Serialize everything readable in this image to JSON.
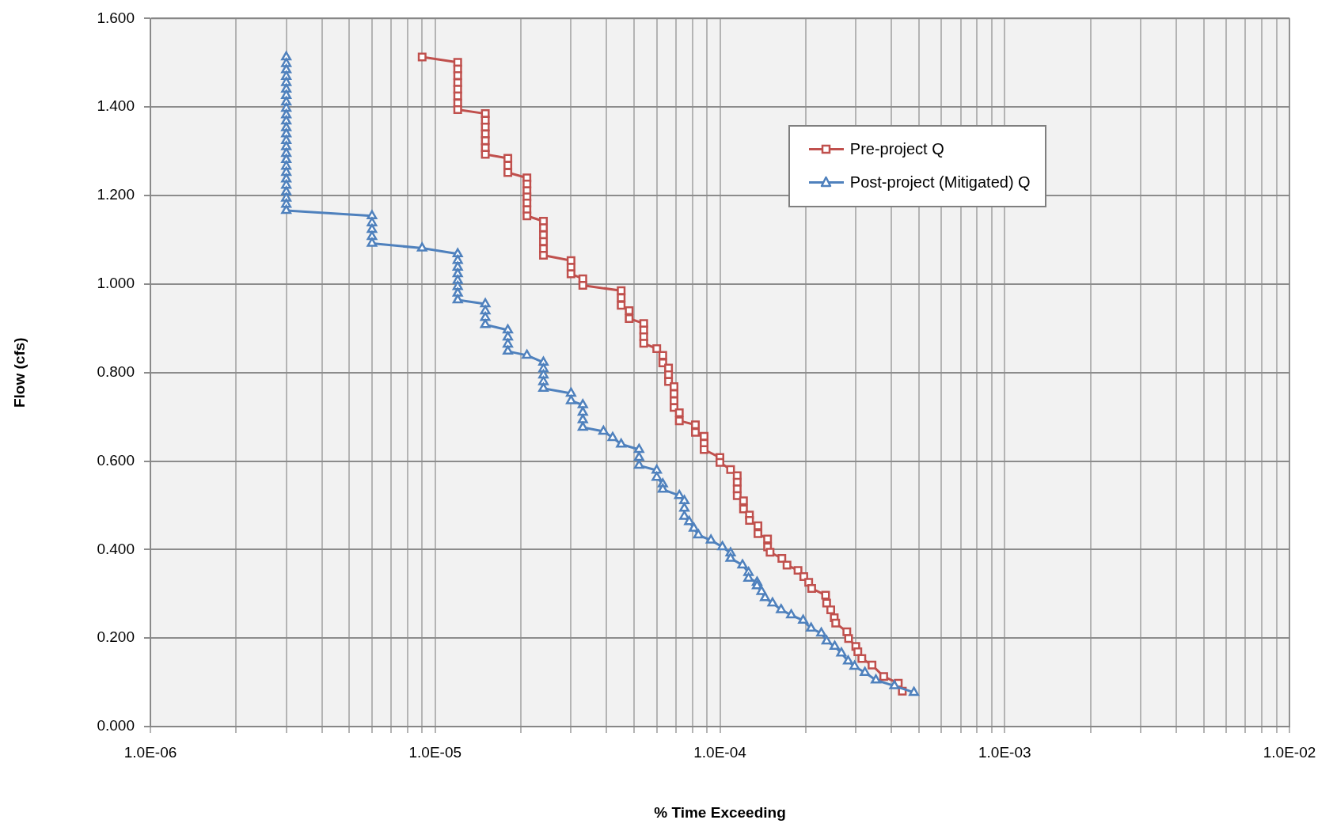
{
  "chart_data": {
    "type": "line",
    "xlabel": "% Time Exceeding",
    "ylabel": "Flow (cfs)",
    "log": "x",
    "grid": true,
    "legend": "top right",
    "xlim": [
      1e-06,
      0.01
    ],
    "xticks": [
      {
        "value": 1e-06,
        "label": "1.0E-06"
      },
      {
        "value": 2e-06,
        "label": null
      },
      {
        "value": 3e-06,
        "label": null
      },
      {
        "value": 4e-06,
        "label": null
      },
      {
        "value": 5e-06,
        "label": null
      },
      {
        "value": 6e-06,
        "label": null
      },
      {
        "value": 7e-06,
        "label": null
      },
      {
        "value": 8e-06,
        "label": null
      },
      {
        "value": 9e-06,
        "label": null
      },
      {
        "value": 1e-05,
        "label": "1.0E-05"
      },
      {
        "value": 2e-05,
        "label": null
      },
      {
        "value": 3e-05,
        "label": null
      },
      {
        "value": 4e-05,
        "label": null
      },
      {
        "value": 5e-05,
        "label": null
      },
      {
        "value": 6e-05,
        "label": null
      },
      {
        "value": 7e-05,
        "label": null
      },
      {
        "value": 8e-05,
        "label": null
      },
      {
        "value": 9e-05,
        "label": null
      },
      {
        "value": 0.0001,
        "label": "1.0E-04"
      },
      {
        "value": 0.0002,
        "label": null
      },
      {
        "value": 0.0003,
        "label": null
      },
      {
        "value": 0.0004,
        "label": null
      },
      {
        "value": 0.0005,
        "label": null
      },
      {
        "value": 0.0006,
        "label": null
      },
      {
        "value": 0.0007,
        "label": null
      },
      {
        "value": 0.0008,
        "label": null
      },
      {
        "value": 0.0009,
        "label": null
      },
      {
        "value": 0.001,
        "label": "1.0E-03"
      },
      {
        "value": 0.002,
        "label": null
      },
      {
        "value": 0.003,
        "label": null
      },
      {
        "value": 0.004,
        "label": null
      },
      {
        "value": 0.005,
        "label": null
      },
      {
        "value": 0.006,
        "label": null
      },
      {
        "value": 0.007,
        "label": null
      },
      {
        "value": 0.008,
        "label": null
      },
      {
        "value": 0.009,
        "label": null
      },
      {
        "value": 0.01,
        "label": "1.0E-02"
      }
    ],
    "ylim": [
      0,
      1.6
    ],
    "yticks": [
      {
        "value": 0,
        "label": "0.000"
      },
      {
        "value": 0.2,
        "label": "0.200"
      },
      {
        "value": 0.4,
        "label": "0.400"
      },
      {
        "value": 0.6,
        "label": "0.600"
      },
      {
        "value": 0.8,
        "label": "0.800"
      },
      {
        "value": 1.0,
        "label": "1.000"
      },
      {
        "value": 1.2,
        "label": "1.200"
      },
      {
        "value": 1.4,
        "label": "1.400"
      },
      {
        "value": 1.6,
        "label": "1.600"
      }
    ],
    "series": [
      {
        "name": "Pre-project Q",
        "color": "#c0504d",
        "marker": "square",
        "x": [
          9e-06,
          1.2e-05,
          1.2e-05,
          1.2e-05,
          1.2e-05,
          1.2e-05,
          1.2e-05,
          1.2e-05,
          1.2e-05,
          1.5e-05,
          1.5e-05,
          1.5e-05,
          1.5e-05,
          1.5e-05,
          1.5e-05,
          1.5e-05,
          1.8e-05,
          1.8e-05,
          1.8e-05,
          2.1e-05,
          2.1e-05,
          2.1e-05,
          2.1e-05,
          2.1e-05,
          2.1e-05,
          2.1e-05,
          2.4e-05,
          2.4e-05,
          2.4e-05,
          2.4e-05,
          2.4e-05,
          2.4e-05,
          3e-05,
          3e-05,
          3e-05,
          3.3e-05,
          3.3e-05,
          4.5e-05,
          4.5e-05,
          4.5e-05,
          4.8e-05,
          4.8e-05,
          5.4e-05,
          5.4e-05,
          5.4e-05,
          5.4e-05,
          6e-05,
          6.3e-05,
          6.3e-05,
          6.6e-05,
          6.6e-05,
          6.6e-05,
          6.9e-05,
          6.9e-05,
          6.9e-05,
          6.9e-05,
          7.2e-05,
          7.2e-05,
          8.2e-05,
          8.2e-05,
          8.8e-05,
          8.8e-05,
          8.8e-05,
          0.0001,
          0.0001,
          0.000109,
          0.000115,
          0.000115,
          0.000115,
          0.000115,
          0.000121,
          0.000121,
          0.000127,
          0.000127,
          0.000136,
          0.000136,
          0.000147,
          0.000147,
          0.00015,
          0.000165,
          0.000172,
          0.000188,
          0.000197,
          0.000205,
          0.00021,
          0.000235,
          0.000237,
          0.000245,
          0.000252,
          0.000255,
          0.000279,
          0.000283,
          0.0003,
          0.000305,
          0.000315,
          0.000342,
          0.000376,
          0.000423,
          0.000437
        ],
        "values": [
          1.513,
          1.501,
          1.486,
          1.471,
          1.455,
          1.44,
          1.425,
          1.409,
          1.394,
          1.385,
          1.37,
          1.355,
          1.339,
          1.324,
          1.308,
          1.293,
          1.284,
          1.268,
          1.252,
          1.24,
          1.226,
          1.211,
          1.197,
          1.183,
          1.168,
          1.154,
          1.142,
          1.127,
          1.111,
          1.096,
          1.08,
          1.065,
          1.053,
          1.038,
          1.023,
          1.012,
          0.997,
          0.985,
          0.969,
          0.952,
          0.94,
          0.922,
          0.911,
          0.896,
          0.881,
          0.866,
          0.854,
          0.839,
          0.822,
          0.81,
          0.795,
          0.78,
          0.768,
          0.752,
          0.736,
          0.721,
          0.709,
          0.691,
          0.682,
          0.665,
          0.656,
          0.64,
          0.626,
          0.608,
          0.597,
          0.581,
          0.567,
          0.552,
          0.537,
          0.522,
          0.51,
          0.492,
          0.478,
          0.466,
          0.454,
          0.436,
          0.424,
          0.406,
          0.394,
          0.38,
          0.365,
          0.353,
          0.339,
          0.326,
          0.312,
          0.297,
          0.279,
          0.264,
          0.246,
          0.234,
          0.214,
          0.199,
          0.181,
          0.169,
          0.154,
          0.139,
          0.113,
          0.098,
          0.08
        ]
      },
      {
        "name": "Post-project (Mitigated) Q",
        "color": "#4f81bd",
        "marker": "triangle",
        "x": [
          3e-06,
          3e-06,
          3e-06,
          3e-06,
          3e-06,
          3e-06,
          3e-06,
          3e-06,
          3e-06,
          3e-06,
          3e-06,
          3e-06,
          3e-06,
          3e-06,
          3e-06,
          3e-06,
          3e-06,
          3e-06,
          3e-06,
          3e-06,
          3e-06,
          3e-06,
          3e-06,
          3e-06,
          3e-06,
          6e-06,
          6e-06,
          6e-06,
          6e-06,
          6e-06,
          9e-06,
          1.2e-05,
          1.2e-05,
          1.2e-05,
          1.2e-05,
          1.2e-05,
          1.2e-05,
          1.2e-05,
          1.2e-05,
          1.5e-05,
          1.5e-05,
          1.5e-05,
          1.5e-05,
          1.8e-05,
          1.8e-05,
          1.8e-05,
          1.8e-05,
          2.1e-05,
          2.4e-05,
          2.4e-05,
          2.4e-05,
          2.4e-05,
          2.4e-05,
          3e-05,
          3e-05,
          3.3e-05,
          3.3e-05,
          3.3e-05,
          3.3e-05,
          3.9e-05,
          4.2e-05,
          4.5e-05,
          5.2e-05,
          5.2e-05,
          5.2e-05,
          6e-05,
          6e-05,
          6.3e-05,
          6.3e-05,
          7.2e-05,
          7.5e-05,
          7.5e-05,
          7.5e-05,
          7.8e-05,
          8.1e-05,
          8.4e-05,
          9.3e-05,
          0.000102,
          0.000109,
          0.000109,
          0.00012,
          0.000126,
          0.000126,
          0.000135,
          0.000135,
          0.00014,
          0.000144,
          0.000153,
          0.000164,
          0.000178,
          0.000196,
          0.000209,
          0.000227,
          0.000237,
          0.000253,
          0.000267,
          0.000282,
          0.000297,
          0.000323,
          0.000353,
          0.00041,
          0.00048
        ],
        "values": [
          1.513,
          1.498,
          1.484,
          1.469,
          1.455,
          1.44,
          1.426,
          1.411,
          1.397,
          1.382,
          1.368,
          1.353,
          1.339,
          1.324,
          1.31,
          1.295,
          1.281,
          1.266,
          1.252,
          1.237,
          1.223,
          1.208,
          1.194,
          1.18,
          1.166,
          1.154,
          1.138,
          1.123,
          1.107,
          1.092,
          1.081,
          1.068,
          1.053,
          1.038,
          1.023,
          1.008,
          0.994,
          0.979,
          0.964,
          0.955,
          0.939,
          0.924,
          0.908,
          0.896,
          0.88,
          0.864,
          0.848,
          0.839,
          0.823,
          0.808,
          0.794,
          0.779,
          0.764,
          0.753,
          0.736,
          0.727,
          0.71,
          0.693,
          0.676,
          0.667,
          0.653,
          0.638,
          0.626,
          0.608,
          0.59,
          0.579,
          0.563,
          0.548,
          0.536,
          0.522,
          0.51,
          0.493,
          0.475,
          0.463,
          0.448,
          0.433,
          0.421,
          0.406,
          0.392,
          0.38,
          0.365,
          0.348,
          0.335,
          0.326,
          0.318,
          0.305,
          0.291,
          0.279,
          0.264,
          0.252,
          0.24,
          0.222,
          0.211,
          0.193,
          0.181,
          0.166,
          0.148,
          0.136,
          0.122,
          0.105,
          0.092,
          0.077
        ]
      }
    ]
  }
}
